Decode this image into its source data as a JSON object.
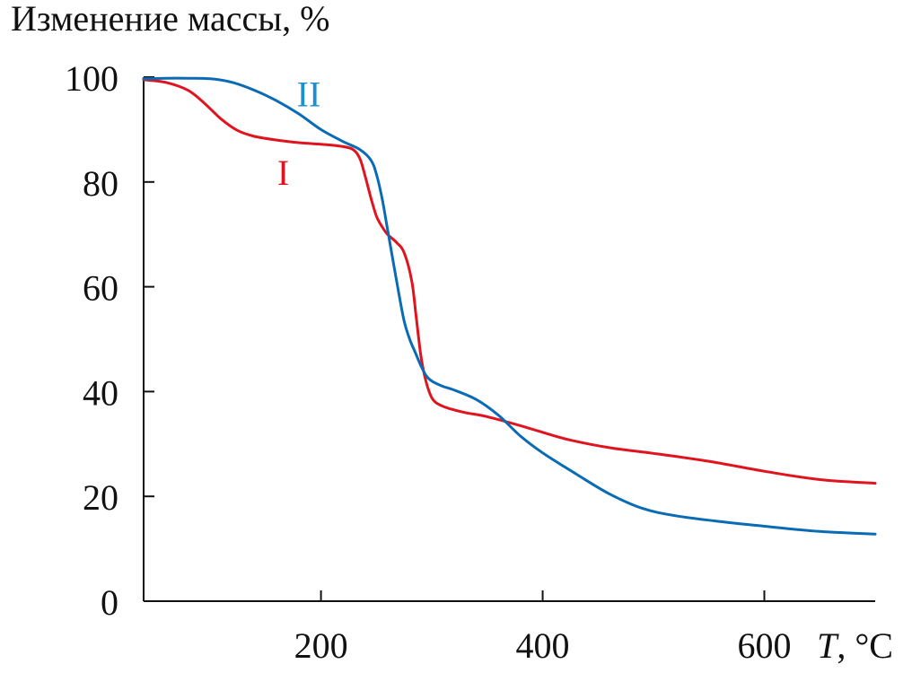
{
  "chart_data": {
    "type": "line",
    "title": "",
    "ylabel": "Изменение массы, %",
    "xlabel_italic": "T",
    "xlabel_rest": ", °C",
    "xlim": [
      40,
      700
    ],
    "ylim": [
      0,
      100
    ],
    "x_ticks": [
      200,
      400,
      600
    ],
    "y_ticks": [
      0,
      20,
      40,
      60,
      80,
      100
    ],
    "grid": false,
    "series": [
      {
        "name": "I",
        "color": "#e0141f",
        "x": [
          40,
          60,
          80,
          95,
          110,
          125,
          140,
          160,
          180,
          200,
          215,
          228,
          235,
          240,
          245,
          250,
          255,
          260,
          268,
          275,
          282,
          286,
          290,
          293,
          296,
          300,
          305,
          315,
          330,
          350,
          380,
          420,
          460,
          500,
          550,
          600,
          650,
          700
        ],
        "y": [
          99.5,
          99,
          97.5,
          95,
          92,
          89.8,
          88.7,
          88,
          87.5,
          87.2,
          86.9,
          86.3,
          84.5,
          81,
          77,
          73.5,
          71.5,
          70,
          68.5,
          66.5,
          61,
          54,
          47,
          43.5,
          41,
          38.8,
          37.7,
          36.8,
          36,
          35.2,
          33.5,
          31,
          29.3,
          28.2,
          26.7,
          24.8,
          23.2,
          22.5
        ]
      },
      {
        "name": "II",
        "color": "#0a6bb5",
        "x": [
          40,
          60,
          80,
          100,
          120,
          140,
          160,
          180,
          200,
          220,
          235,
          245,
          250,
          255,
          260,
          265,
          270,
          275,
          280,
          285,
          290,
          295,
          300,
          310,
          320,
          340,
          360,
          380,
          400,
          430,
          460,
          490,
          520,
          560,
          600,
          650,
          700
        ],
        "y": [
          99.7,
          99.8,
          99.8,
          99.7,
          99,
          97.5,
          95.5,
          93,
          90,
          87.7,
          86.2,
          84.2,
          81.5,
          77,
          71,
          65,
          59,
          53.5,
          50,
          47.5,
          45,
          43,
          42,
          41,
          40.3,
          38.5,
          35.5,
          31.5,
          28.3,
          24.3,
          20.5,
          17.7,
          16.3,
          15.2,
          14.3,
          13.3,
          12.8
        ]
      }
    ],
    "annotations": [
      {
        "text": "I",
        "color": "#e0141f",
        "x": 166,
        "y": 82
      },
      {
        "text": "II",
        "color": "#1a8fd1",
        "x": 189,
        "y": 97
      }
    ]
  }
}
